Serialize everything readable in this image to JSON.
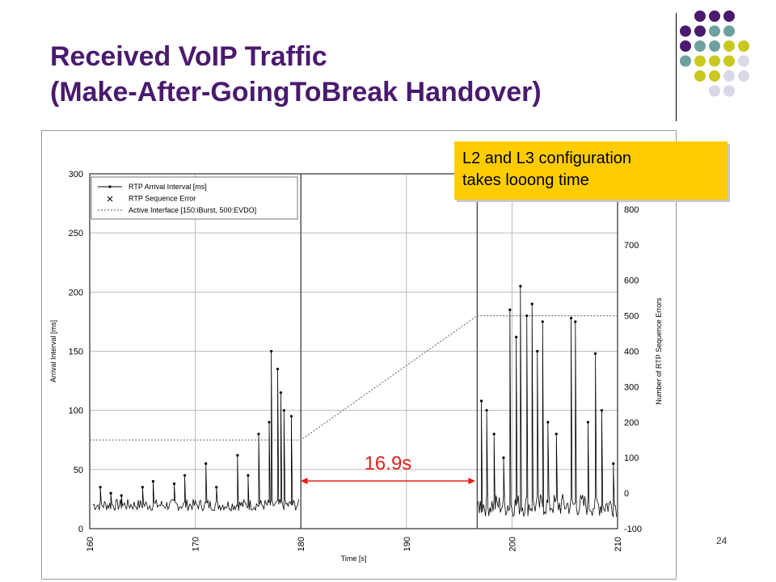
{
  "slide": {
    "title_line1": "Received VoIP Traffic",
    "title_line2": "(Make-After-GoingToBreak Handover)",
    "callout_line1": "L2 and L3 configuration",
    "callout_line2": "takes looong time",
    "page_number": "24",
    "colors": {
      "title": "#4a1a6e",
      "callout_bg": "#ffcc00",
      "gap_arrow": "#e8201c"
    },
    "decoration_dots": [
      {
        "row": 0,
        "colors": [
          "#4a1a6e",
          "#4a1a6e",
          "#4a1a6e"
        ]
      },
      {
        "row": 1,
        "colors": [
          "#4a1a6e",
          "#4a1a6e",
          "#6fa0a0",
          "#6fa0a0"
        ]
      },
      {
        "row": 2,
        "colors": [
          "#4a1a6e",
          "#6fa0a0",
          "#6fa0a0",
          "#c8c820",
          "#c8c820"
        ]
      },
      {
        "row": 3,
        "colors": [
          "#6fa0a0",
          "#c8c820",
          "#c8c820",
          "#c8c820",
          "#d8d8e8"
        ]
      },
      {
        "row": 4,
        "colors": [
          "#c8c820",
          "#c8c820",
          "#d8d8e8",
          "#d8d8e8"
        ]
      },
      {
        "row": 5,
        "colors": [
          "#d8d8e8",
          "#d8d8e8"
        ]
      }
    ]
  },
  "chart_data": {
    "type": "line",
    "xlabel": "Time [s]",
    "ylabel": "Arrival Interval [ms]",
    "y2label": "Number of RTP Sequence Errors",
    "xlim": [
      160,
      210
    ],
    "ylim": [
      0,
      300
    ],
    "y2lim": [
      -100,
      900
    ],
    "xticks": [
      "160",
      "170",
      "180",
      "190",
      "200",
      "210"
    ],
    "yticks": [
      "0",
      "50",
      "100",
      "150",
      "200",
      "250",
      "300"
    ],
    "y2ticks": [
      "-100",
      "0",
      "100",
      "200",
      "300",
      "400",
      "500",
      "600",
      "700",
      "800"
    ],
    "legend": [
      "RTP Arrival Interval [ms]",
      "RTP Sequence Error",
      "Active Interface [150:iBurst, 500:EVDO]"
    ],
    "legend_position": "top-left",
    "grid": true,
    "handover_gap": {
      "label": "16.9s",
      "start": 179.8,
      "end": 196.7
    },
    "vertical_markers": [
      180,
      196.7
    ],
    "series": [
      {
        "name": "RTP Arrival Interval [ms]",
        "style": "line-markers",
        "baseline_before": 20,
        "noise_before": 5,
        "baseline_after": 20,
        "noise_after": 10,
        "spikes": [
          {
            "x": 161,
            "y": 35
          },
          {
            "x": 162,
            "y": 30
          },
          {
            "x": 163,
            "y": 28
          },
          {
            "x": 165,
            "y": 35
          },
          {
            "x": 166,
            "y": 40
          },
          {
            "x": 168,
            "y": 38
          },
          {
            "x": 169,
            "y": 45
          },
          {
            "x": 171,
            "y": 55
          },
          {
            "x": 172,
            "y": 35
          },
          {
            "x": 174,
            "y": 62
          },
          {
            "x": 175,
            "y": 45
          },
          {
            "x": 176,
            "y": 80
          },
          {
            "x": 177,
            "y": 90
          },
          {
            "x": 177.2,
            "y": 150
          },
          {
            "x": 177.8,
            "y": 135
          },
          {
            "x": 178.1,
            "y": 115
          },
          {
            "x": 178.4,
            "y": 100
          },
          {
            "x": 179.1,
            "y": 95
          },
          {
            "x": 197.1,
            "y": 108
          },
          {
            "x": 197.6,
            "y": 100
          },
          {
            "x": 198.3,
            "y": 80
          },
          {
            "x": 199.2,
            "y": 60
          },
          {
            "x": 199.8,
            "y": 185
          },
          {
            "x": 200.4,
            "y": 162
          },
          {
            "x": 200.8,
            "y": 205
          },
          {
            "x": 201.4,
            "y": 180
          },
          {
            "x": 201.9,
            "y": 190
          },
          {
            "x": 202.4,
            "y": 150
          },
          {
            "x": 202.9,
            "y": 175
          },
          {
            "x": 203.4,
            "y": 90
          },
          {
            "x": 204.2,
            "y": 80
          },
          {
            "x": 205.6,
            "y": 178
          },
          {
            "x": 206.0,
            "y": 175
          },
          {
            "x": 207.2,
            "y": 90
          },
          {
            "x": 207.9,
            "y": 148
          },
          {
            "x": 208.5,
            "y": 100
          },
          {
            "x": 209.6,
            "y": 55
          }
        ]
      },
      {
        "name": "Active Interface [150:iBurst, 500:EVDO]",
        "style": "dotted",
        "axis": "right",
        "points": [
          [
            160,
            150
          ],
          [
            180,
            150
          ],
          [
            196.7,
            500
          ],
          [
            210,
            500
          ]
        ]
      }
    ]
  }
}
